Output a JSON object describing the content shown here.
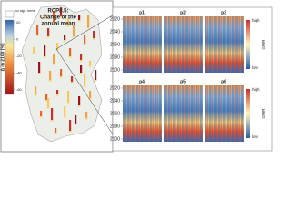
{
  "map": {
    "title": [
      "RCP8.5:",
      "Change of the",
      "annual mean"
    ],
    "legend": {
      "no_trend": "no sign. trend",
      "label": "Δ in 2100 [%]",
      "ticks": [
        20,
        0,
        -20,
        -40,
        -60
      ]
    }
  },
  "panels": {
    "labels": [
      "p1",
      "p2",
      "p3",
      "p4",
      "p5",
      "p6"
    ],
    "yticks": [
      2020,
      2040,
      2060,
      2080,
      2100
    ],
    "high": "high",
    "low": "low",
    "axis": "GWR"
  }
}
